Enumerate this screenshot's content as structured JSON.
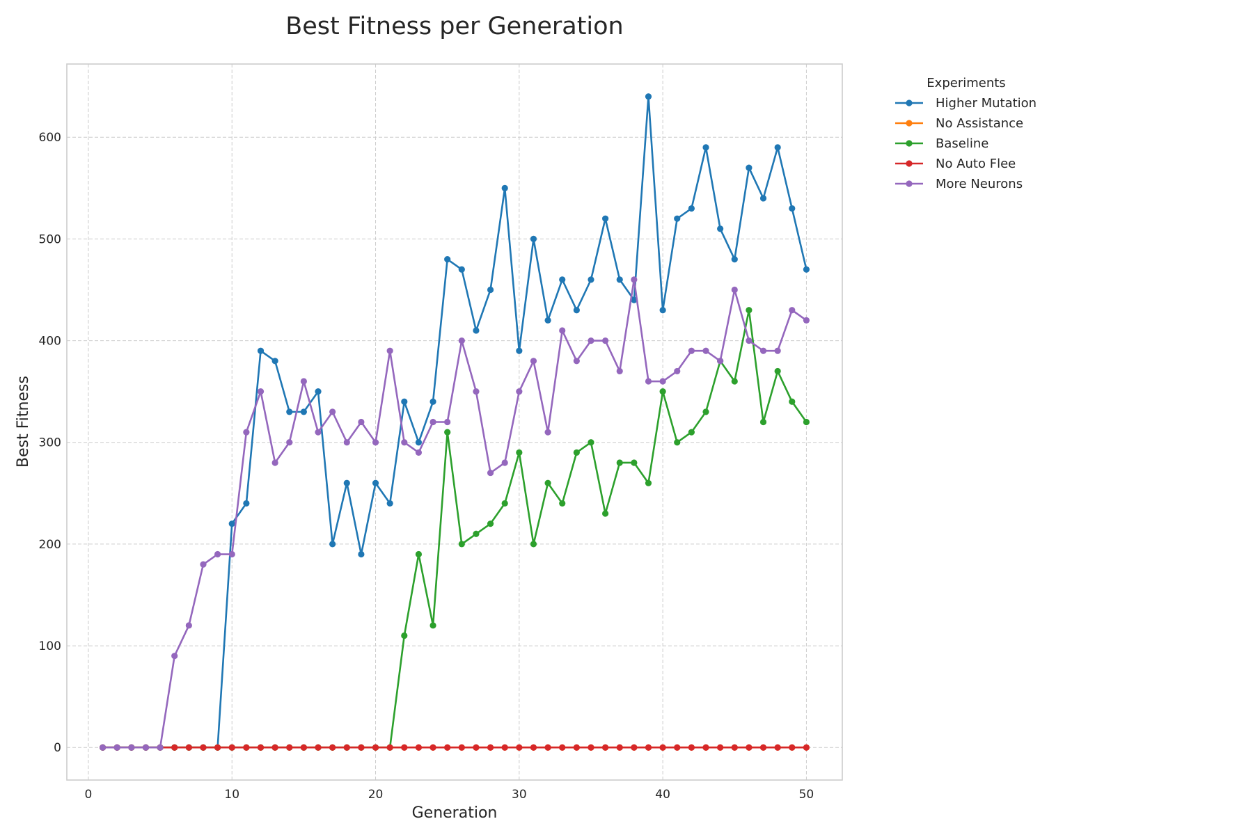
{
  "chart_data": {
    "type": "line",
    "title": "Best Fitness per Generation",
    "xlabel": "Generation",
    "ylabel": "Best Fitness",
    "xlim": [
      -1.5,
      52.5
    ],
    "ylim": [
      -32,
      672
    ],
    "xticks": [
      0,
      10,
      20,
      30,
      40,
      50
    ],
    "yticks": [
      0,
      100,
      200,
      300,
      400,
      500,
      600
    ],
    "grid": true,
    "legend": {
      "title": "Experiments",
      "placement": "outside-right"
    },
    "x": [
      1,
      2,
      3,
      4,
      5,
      6,
      7,
      8,
      9,
      10,
      11,
      12,
      13,
      14,
      15,
      16,
      17,
      18,
      19,
      20,
      21,
      22,
      23,
      24,
      25,
      26,
      27,
      28,
      29,
      30,
      31,
      32,
      33,
      34,
      35,
      36,
      37,
      38,
      39,
      40,
      41,
      42,
      43,
      44,
      45,
      46,
      47,
      48,
      49,
      50
    ],
    "series": [
      {
        "name": "Higher Mutation",
        "color": "#1f77b4",
        "values": [
          0,
          0,
          0,
          0,
          0,
          0,
          0,
          0,
          0,
          220,
          240,
          390,
          380,
          330,
          330,
          350,
          200,
          260,
          190,
          260,
          240,
          340,
          300,
          340,
          480,
          470,
          410,
          450,
          550,
          390,
          500,
          420,
          460,
          430,
          460,
          520,
          460,
          440,
          640,
          430,
          520,
          530,
          590,
          510,
          480,
          570,
          540,
          590,
          530,
          470
        ]
      },
      {
        "name": "No Assistance",
        "color": "#ff7f0e",
        "values": [
          0,
          0,
          0,
          0,
          0,
          0,
          0,
          0,
          0,
          0,
          0,
          0,
          0,
          0,
          0,
          0,
          0,
          0,
          0,
          0,
          0,
          0,
          0,
          0,
          0,
          0,
          0,
          0,
          0,
          0,
          0,
          0,
          0,
          0,
          0,
          0,
          0,
          0,
          0,
          0,
          0,
          0,
          0,
          0,
          0,
          0,
          0,
          0,
          0,
          0
        ]
      },
      {
        "name": "Baseline",
        "color": "#2ca02c",
        "values": [
          0,
          0,
          0,
          0,
          0,
          0,
          0,
          0,
          0,
          0,
          0,
          0,
          0,
          0,
          0,
          0,
          0,
          0,
          0,
          0,
          0,
          110,
          190,
          120,
          310,
          200,
          210,
          220,
          240,
          290,
          200,
          260,
          240,
          290,
          300,
          230,
          280,
          280,
          260,
          350,
          300,
          310,
          330,
          380,
          360,
          430,
          320,
          370,
          340,
          320
        ]
      },
      {
        "name": "No Auto Flee",
        "color": "#d62728",
        "values": [
          0,
          0,
          0,
          0,
          0,
          0,
          0,
          0,
          0,
          0,
          0,
          0,
          0,
          0,
          0,
          0,
          0,
          0,
          0,
          0,
          0,
          0,
          0,
          0,
          0,
          0,
          0,
          0,
          0,
          0,
          0,
          0,
          0,
          0,
          0,
          0,
          0,
          0,
          0,
          0,
          0,
          0,
          0,
          0,
          0,
          0,
          0,
          0,
          0,
          0
        ]
      },
      {
        "name": "More Neurons",
        "color": "#9467bd",
        "values": [
          0,
          0,
          0,
          0,
          0,
          90,
          120,
          180,
          190,
          190,
          310,
          350,
          280,
          300,
          360,
          310,
          330,
          300,
          320,
          300,
          390,
          300,
          290,
          320,
          320,
          400,
          350,
          270,
          280,
          350,
          380,
          310,
          410,
          380,
          400,
          400,
          370,
          460,
          360,
          360,
          370,
          390,
          390,
          380,
          450,
          400,
          390,
          390,
          430,
          420
        ]
      }
    ],
    "draw_order": [
      "Higher Mutation",
      "No Assistance",
      "Baseline",
      "No Auto Flee",
      "More Neurons"
    ]
  }
}
